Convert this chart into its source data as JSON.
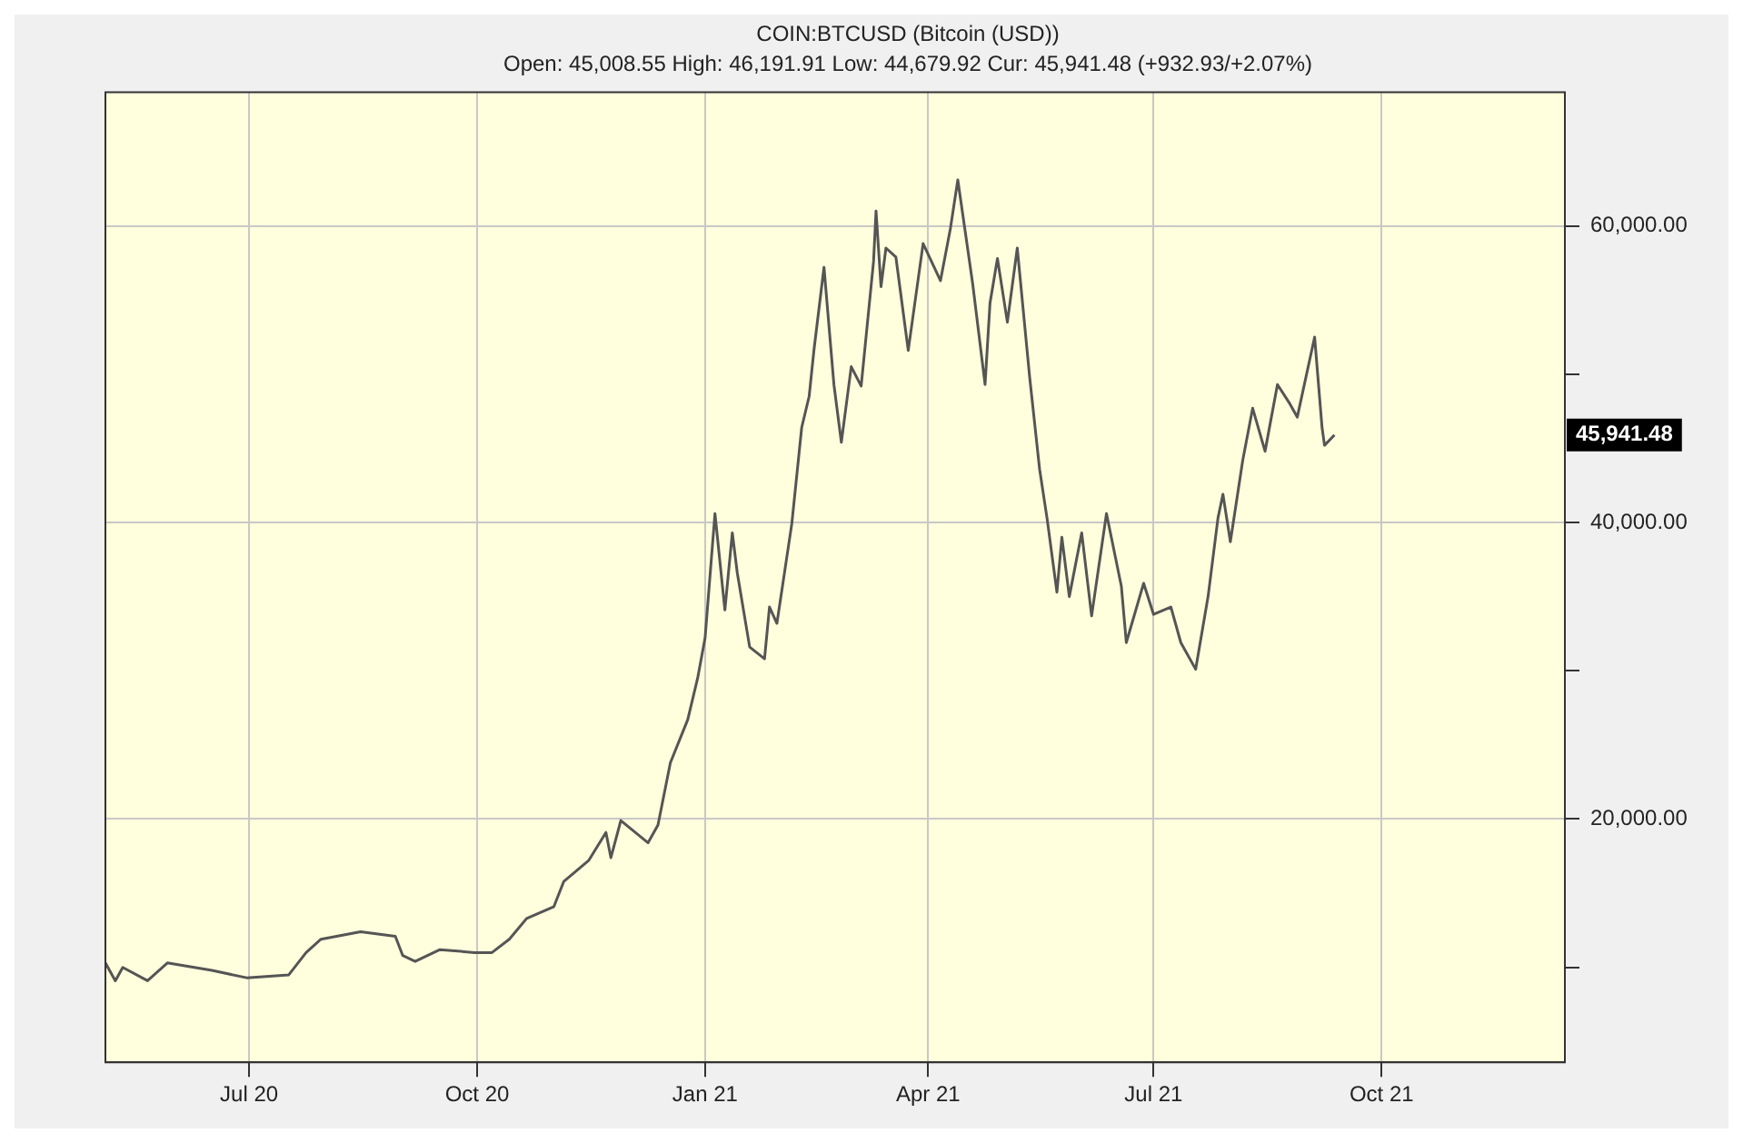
{
  "chart_data": {
    "type": "line",
    "title": "COIN:BTCUSD (Bitcoin (USD))",
    "subtitle": "Open: 45,008.55 High: 46,191.91 Low: 44,679.92 Cur: 45,941.48 (+932.93/+2.07%)",
    "x": [
      "2020-05-04",
      "2020-05-08",
      "2020-05-11",
      "2020-05-21",
      "2020-05-29",
      "2020-06-16",
      "2020-06-30",
      "2020-07-17",
      "2020-07-24",
      "2020-07-30",
      "2020-08-15",
      "2020-08-29",
      "2020-09-01",
      "2020-09-06",
      "2020-09-16",
      "2020-09-30",
      "2020-10-07",
      "2020-10-14",
      "2020-10-21",
      "2020-11-01",
      "2020-11-05",
      "2020-11-15",
      "2020-11-22",
      "2020-11-24",
      "2020-11-28",
      "2020-12-09",
      "2020-12-13",
      "2020-12-18",
      "2020-12-25",
      "2020-12-29",
      "2021-01-01",
      "2021-01-05",
      "2021-01-09",
      "2021-01-12",
      "2021-01-14",
      "2021-01-19",
      "2021-01-25",
      "2021-01-27",
      "2021-01-30",
      "2021-02-05",
      "2021-02-09",
      "2021-02-12",
      "2021-02-14",
      "2021-02-18",
      "2021-02-22",
      "2021-02-25",
      "2021-03-01",
      "2021-03-05",
      "2021-03-10",
      "2021-03-11",
      "2021-03-13",
      "2021-03-15",
      "2021-03-19",
      "2021-03-24",
      "2021-03-30",
      "2021-04-06",
      "2021-04-10",
      "2021-04-13",
      "2021-04-19",
      "2021-04-24",
      "2021-04-26",
      "2021-04-29",
      "2021-05-03",
      "2021-05-07",
      "2021-05-12",
      "2021-05-16",
      "2021-05-19",
      "2021-05-23",
      "2021-05-25",
      "2021-05-28",
      "2021-06-02",
      "2021-06-06",
      "2021-06-12",
      "2021-06-18",
      "2021-06-20",
      "2021-06-27",
      "2021-07-01",
      "2021-07-08",
      "2021-07-12",
      "2021-07-18",
      "2021-07-23",
      "2021-07-27",
      "2021-07-29",
      "2021-08-01",
      "2021-08-06",
      "2021-08-10",
      "2021-08-15",
      "2021-08-20",
      "2021-08-25",
      "2021-08-28",
      "2021-09-04",
      "2021-09-07",
      "2021-09-08",
      "2021-09-12"
    ],
    "series": [
      {
        "color": "#555555",
        "values": [
          10300,
          9100,
          10000,
          9100,
          10300,
          9800,
          9300,
          9500,
          11000,
          11900,
          12400,
          12100,
          10800,
          10400,
          11200,
          11000,
          11000,
          11900,
          13300,
          14100,
          15800,
          17200,
          19100,
          17400,
          19900,
          18400,
          19600,
          23800,
          26700,
          29500,
          32200,
          40600,
          34100,
          39300,
          36600,
          31600,
          30800,
          34300,
          33200,
          39900,
          46400,
          48500,
          51700,
          57200,
          49300,
          45400,
          50500,
          49200,
          57600,
          61000,
          55900,
          58500,
          57900,
          51600,
          58800,
          56300,
          59800,
          63100,
          56100,
          49300,
          54800,
          57800,
          53500,
          58500,
          49800,
          43600,
          40300,
          35300,
          39000,
          35000,
          39300,
          33700,
          40600,
          35700,
          31900,
          35900,
          33800,
          34300,
          31900,
          30100,
          35000,
          40300,
          41900,
          38700,
          44200,
          47700,
          44800,
          49300,
          48000,
          47100,
          52500,
          46400,
          45200,
          45900
        ]
      }
    ],
    "xlim": [
      "2020-05-04",
      "2021-12-14"
    ],
    "xticks": [
      {
        "value": "2020-07-01",
        "label": "Jul 20"
      },
      {
        "value": "2020-10-01",
        "label": "Oct 20"
      },
      {
        "value": "2021-01-01",
        "label": "Jan 21"
      },
      {
        "value": "2021-04-01",
        "label": "Apr 21"
      },
      {
        "value": "2021-07-01",
        "label": "Jul 21"
      },
      {
        "value": "2021-10-01",
        "label": "Oct 21"
      }
    ],
    "ylim": [
      3600,
      69000
    ],
    "yticks": [
      {
        "value": 10000,
        "label": null
      },
      {
        "value": 20000,
        "label": "20,000.00"
      },
      {
        "value": 30000,
        "label": null
      },
      {
        "value": 40000,
        "label": "40,000.00"
      },
      {
        "value": 50000,
        "label": null
      },
      {
        "value": 60000,
        "label": "60,000.00"
      }
    ],
    "annotations": [
      "45,941.48"
    ],
    "grid": true,
    "legend": false,
    "marker": "none",
    "line_style": "solid"
  }
}
